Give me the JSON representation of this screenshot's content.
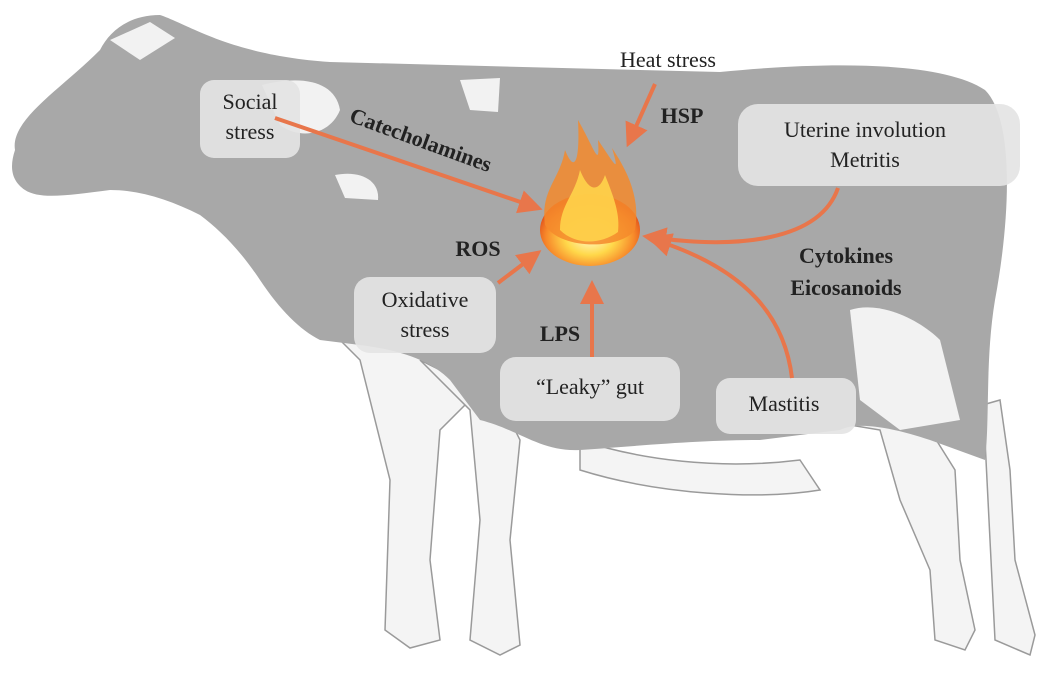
{
  "stressors": {
    "social": [
      "Social",
      "stress"
    ],
    "heat": "Heat stress",
    "uterine": [
      "Uterine involution",
      "Metritis"
    ],
    "oxidative": [
      "Oxidative",
      "stress"
    ],
    "gut": "“Leaky” gut",
    "mastitis": "Mastitis"
  },
  "mediators": {
    "catecholamines": "Catecholamines",
    "hsp": "HSP",
    "ros": "ROS",
    "lps": "LPS",
    "cytokines": "Cytokines",
    "eicosanoids": "Eicosanoids"
  }
}
